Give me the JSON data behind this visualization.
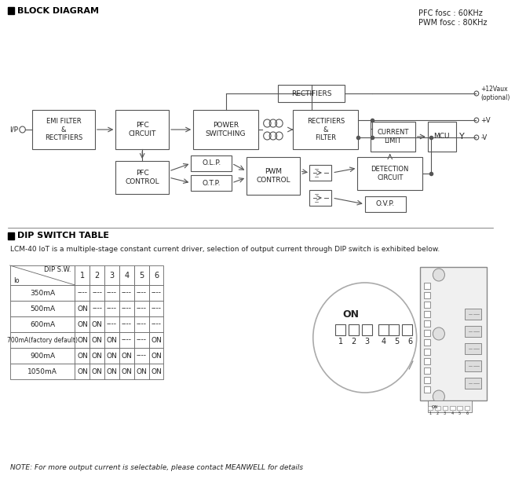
{
  "title_block": "BLOCK DIAGRAM",
  "title_dip": "DIP SWITCH TABLE",
  "pfc_text": "PFC fosc : 60KHz\nPWM fosc : 80KHz",
  "description": "LCM-40 IoT is a multiple-stage constant current driver, selection of output current through DIP switch is exhibited below.",
  "note": "NOTE: For more output current is selectable, please contact MEANWELL for details",
  "bg_color": "#ffffff",
  "line_color": "#555555",
  "box_color": "#555555",
  "text_color": "#222222",
  "table_headers": [
    "Io",
    "DIP S.W.",
    "1",
    "2",
    "3",
    "4",
    "5",
    "6"
  ],
  "table_rows": [
    [
      "350mA",
      "----",
      "----",
      "----",
      "----",
      "----",
      "----"
    ],
    [
      "500mA",
      "ON",
      "----",
      "----",
      "----",
      "----",
      "----"
    ],
    [
      "600mA",
      "ON",
      "ON",
      "----",
      "----",
      "----",
      "----"
    ],
    [
      "700mA(factory default)",
      "ON",
      "ON",
      "ON",
      "----",
      "----",
      "ON"
    ],
    [
      "900mA",
      "ON",
      "ON",
      "ON",
      "ON",
      "----",
      "ON"
    ],
    [
      "1050mA",
      "ON",
      "ON",
      "ON",
      "ON",
      "ON",
      "ON"
    ]
  ]
}
